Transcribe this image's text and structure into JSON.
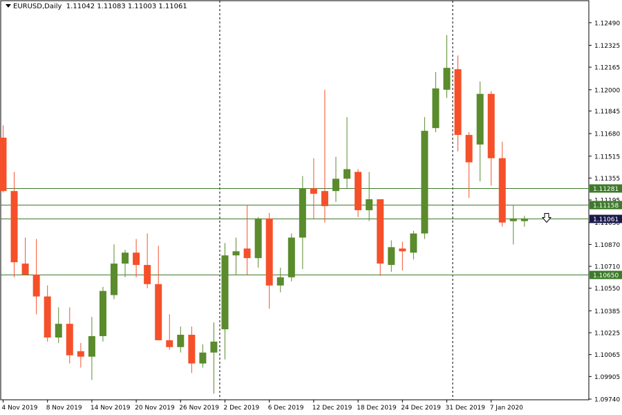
{
  "header": {
    "symbol": "EURUSD,Daily",
    "ohlc": "1.11042 1.11083 1.11003 1.11061"
  },
  "colors": {
    "bull": "#5a8b2c",
    "bear": "#f5502a",
    "grid": "#000000",
    "hline": "#3d7a2a",
    "price_box": "#1a1a4a"
  },
  "chart_data": {
    "type": "candlestick",
    "ylim": [
      1.0974,
      1.1258
    ],
    "y_ticks": [
      "1.12490",
      "1.12325",
      "1.12165",
      "1.12000",
      "1.11845",
      "1.11680",
      "1.11515",
      "1.11355",
      "1.11195",
      "1.11030",
      "1.10870",
      "1.10710",
      "1.10550",
      "1.10385",
      "1.10225",
      "1.10065",
      "1.09905",
      "1.09740"
    ],
    "x_labels": [
      {
        "index": 0,
        "label": "4 Nov 2019"
      },
      {
        "index": 4,
        "label": "8 Nov 2019"
      },
      {
        "index": 8,
        "label": "14 Nov 2019"
      },
      {
        "index": 12,
        "label": "20 Nov 2019"
      },
      {
        "index": 16,
        "label": "26 Nov 2019"
      },
      {
        "index": 20,
        "label": "2 Dec 2019"
      },
      {
        "index": 24,
        "label": "6 Dec 2019"
      },
      {
        "index": 28,
        "label": "12 Dec 2019"
      },
      {
        "index": 32,
        "label": "18 Dec 2019"
      },
      {
        "index": 36,
        "label": "24 Dec 2019"
      },
      {
        "index": 40,
        "label": "31 Dec 2019"
      },
      {
        "index": 44,
        "label": "7 Jan 2020"
      }
    ],
    "separators": [
      20,
      41
    ],
    "candles": [
      {
        "o": 1.1165,
        "h": 1.1174,
        "l": 1.1125,
        "c": 1.1126
      },
      {
        "o": 1.1126,
        "h": 1.114,
        "l": 1.1063,
        "c": 1.1074
      },
      {
        "o": 1.1073,
        "h": 1.1092,
        "l": 1.1065,
        "c": 1.1065
      },
      {
        "o": 1.1065,
        "h": 1.1091,
        "l": 1.1036,
        "c": 1.1049
      },
      {
        "o": 1.1049,
        "h": 1.1057,
        "l": 1.1016,
        "c": 1.1019
      },
      {
        "o": 1.1019,
        "h": 1.1041,
        "l": 1.1015,
        "c": 1.1029
      },
      {
        "o": 1.1029,
        "h": 1.1041,
        "l": 1.1,
        "c": 1.1006
      },
      {
        "o": 1.1009,
        "h": 1.1015,
        "l": 1.0997,
        "c": 1.1005
      },
      {
        "o": 1.1005,
        "h": 1.1034,
        "l": 1.0988,
        "c": 1.102
      },
      {
        "o": 1.102,
        "h": 1.1056,
        "l": 1.1016,
        "c": 1.1053
      },
      {
        "o": 1.105,
        "h": 1.1087,
        "l": 1.1047,
        "c": 1.1073
      },
      {
        "o": 1.1073,
        "h": 1.1083,
        "l": 1.1063,
        "c": 1.1081
      },
      {
        "o": 1.1081,
        "h": 1.1091,
        "l": 1.1063,
        "c": 1.1072
      },
      {
        "o": 1.1072,
        "h": 1.1095,
        "l": 1.1055,
        "c": 1.1058
      },
      {
        "o": 1.1058,
        "h": 1.1086,
        "l": 1.1017,
        "c": 1.1017
      },
      {
        "o": 1.1017,
        "h": 1.1036,
        "l": 1.101,
        "c": 1.1012
      },
      {
        "o": 1.1012,
        "h": 1.1027,
        "l": 1.1008,
        "c": 1.1021
      },
      {
        "o": 1.1021,
        "h": 1.1027,
        "l": 1.0993,
        "c": 1.1
      },
      {
        "o": 1.1,
        "h": 1.1014,
        "l": 1.0997,
        "c": 1.1008
      },
      {
        "o": 1.1008,
        "h": 1.103,
        "l": 1.0978,
        "c": 1.1016
      },
      {
        "o": 1.1025,
        "h": 1.1088,
        "l": 1.1003,
        "c": 1.1079
      },
      {
        "o": 1.1079,
        "h": 1.1092,
        "l": 1.1065,
        "c": 1.1082
      },
      {
        "o": 1.1084,
        "h": 1.1116,
        "l": 1.1065,
        "c": 1.1077
      },
      {
        "o": 1.1077,
        "h": 1.1107,
        "l": 1.107,
        "c": 1.1106
      },
      {
        "o": 1.1106,
        "h": 1.111,
        "l": 1.104,
        "c": 1.1057
      },
      {
        "o": 1.1057,
        "h": 1.107,
        "l": 1.1052,
        "c": 1.1063
      },
      {
        "o": 1.1063,
        "h": 1.1095,
        "l": 1.106,
        "c": 1.1092
      },
      {
        "o": 1.1092,
        "h": 1.1137,
        "l": 1.1069,
        "c": 1.1128
      },
      {
        "o": 1.1128,
        "h": 1.115,
        "l": 1.1106,
        "c": 1.1124
      },
      {
        "o": 1.1126,
        "h": 1.12,
        "l": 1.1103,
        "c": 1.1115
      },
      {
        "o": 1.1126,
        "h": 1.1151,
        "l": 1.1118,
        "c": 1.1135
      },
      {
        "o": 1.1135,
        "h": 1.118,
        "l": 1.1128,
        "c": 1.1142
      },
      {
        "o": 1.114,
        "h": 1.1142,
        "l": 1.1107,
        "c": 1.1112
      },
      {
        "o": 1.1112,
        "h": 1.114,
        "l": 1.1104,
        "c": 1.112
      },
      {
        "o": 1.112,
        "h": 1.112,
        "l": 1.1064,
        "c": 1.1073
      },
      {
        "o": 1.1072,
        "h": 1.109,
        "l": 1.1067,
        "c": 1.1085
      },
      {
        "o": 1.1084,
        "h": 1.1089,
        "l": 1.1068,
        "c": 1.1082
      },
      {
        "o": 1.1081,
        "h": 1.1097,
        "l": 1.1076,
        "c": 1.1095
      },
      {
        "o": 1.1095,
        "h": 1.118,
        "l": 1.1091,
        "c": 1.117
      },
      {
        "o": 1.1172,
        "h": 1.1213,
        "l": 1.1169,
        "c": 1.1201
      },
      {
        "o": 1.12,
        "h": 1.124,
        "l": 1.1194,
        "c": 1.1216
      },
      {
        "o": 1.1215,
        "h": 1.1225,
        "l": 1.1155,
        "c": 1.1167
      },
      {
        "o": 1.1167,
        "h": 1.1169,
        "l": 1.1121,
        "c": 1.1147
      },
      {
        "o": 1.116,
        "h": 1.1206,
        "l": 1.1133,
        "c": 1.1197
      },
      {
        "o": 1.1197,
        "h": 1.1199,
        "l": 1.113,
        "c": 1.115
      },
      {
        "o": 1.115,
        "h": 1.1162,
        "l": 1.11,
        "c": 1.1103
      },
      {
        "o": 1.1104,
        "h": 1.1116,
        "l": 1.1087,
        "c": 1.1106
      },
      {
        "o": 1.1104,
        "h": 1.1108,
        "l": 1.11,
        "c": 1.1106
      }
    ],
    "levels": [
      {
        "value": 1.11281,
        "label": "1.11281"
      },
      {
        "value": 1.11158,
        "label": "1.11158"
      },
      {
        "value": 1.1065,
        "label": "1.10650"
      }
    ],
    "current_price": {
      "value": 1.11061,
      "label": "1.11061"
    },
    "arrow_at_index": 49
  }
}
